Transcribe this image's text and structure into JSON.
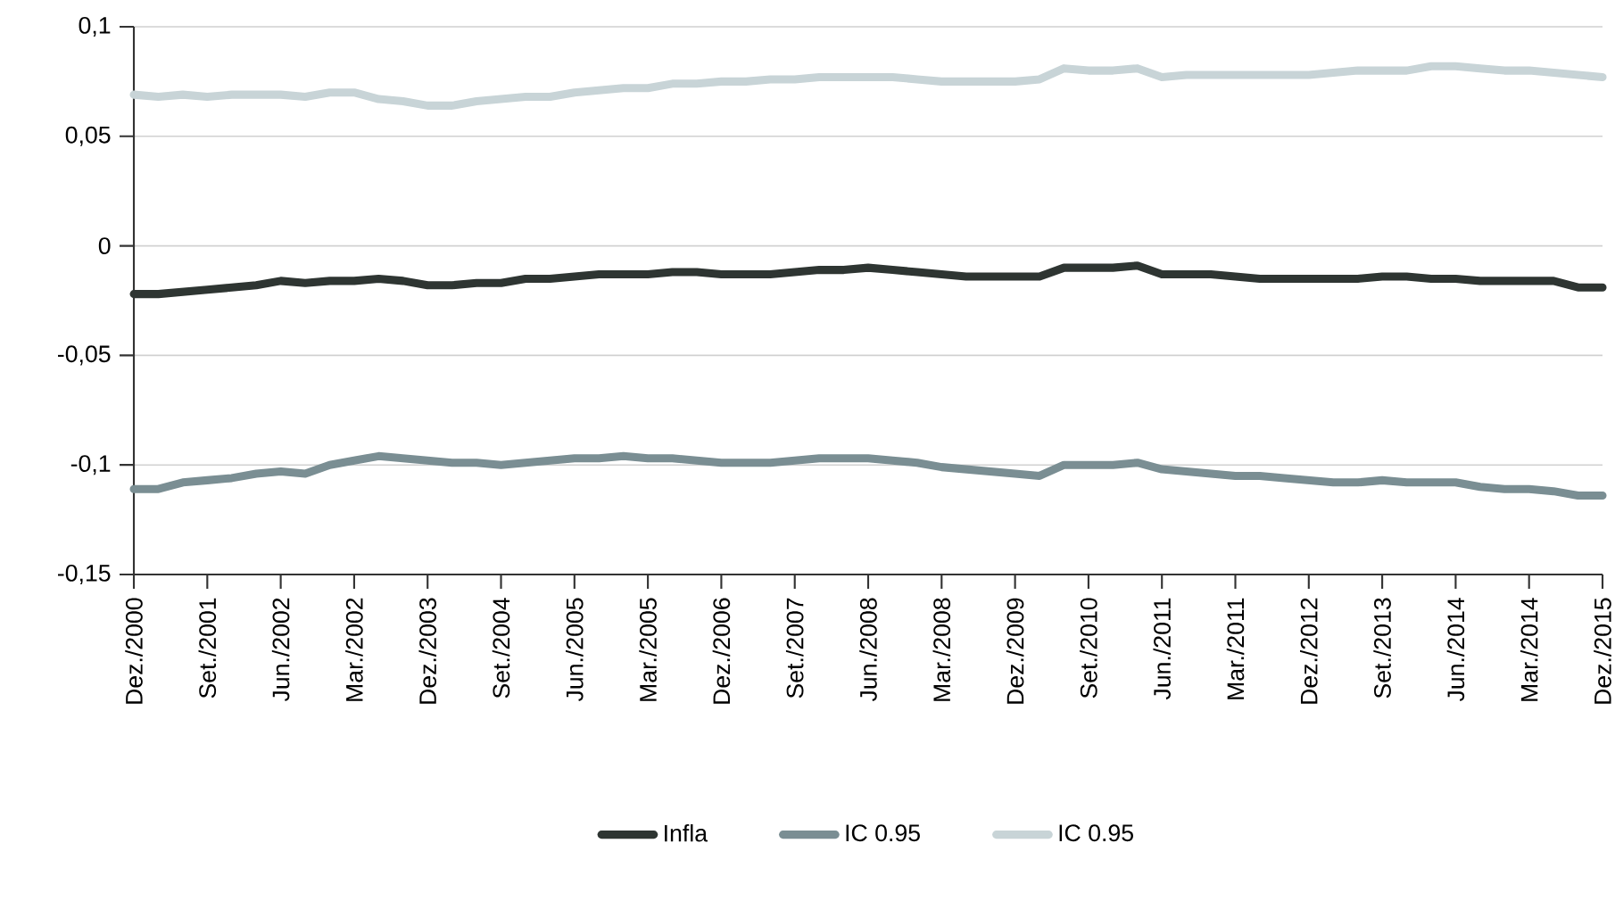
{
  "chart_data": {
    "type": "line",
    "categories": [
      "Dez./2000",
      null,
      null,
      "Set./2001",
      null,
      null,
      "Jun./2002",
      null,
      null,
      "Mar./2002",
      null,
      null,
      "Dez./2003",
      null,
      null,
      "Set./2004",
      null,
      null,
      "Jun./2005",
      null,
      null,
      "Mar./2005",
      null,
      null,
      "Dez./2006",
      null,
      null,
      "Set./2007",
      null,
      null,
      "Jun./2008",
      null,
      null,
      "Mar./2008",
      null,
      null,
      "Dez./2009",
      null,
      null,
      "Set./2010",
      null,
      null,
      "Jun./2011",
      null,
      null,
      "Mar./2011",
      null,
      null,
      "Dez./2012",
      null,
      null,
      "Set./2013",
      null,
      null,
      "Jun./2014",
      null,
      null,
      "Mar./2014",
      null,
      null,
      "Dez./2015"
    ],
    "series": [
      {
        "name": "Infla",
        "color": "#2e3532",
        "values": [
          -0.022,
          -0.022,
          -0.021,
          -0.02,
          -0.019,
          -0.018,
          -0.016,
          -0.017,
          -0.016,
          -0.016,
          -0.015,
          -0.016,
          -0.018,
          -0.018,
          -0.017,
          -0.017,
          -0.015,
          -0.015,
          -0.014,
          -0.013,
          -0.013,
          -0.013,
          -0.012,
          -0.012,
          -0.013,
          -0.013,
          -0.013,
          -0.012,
          -0.011,
          -0.011,
          -0.01,
          -0.011,
          -0.012,
          -0.013,
          -0.014,
          -0.014,
          -0.014,
          -0.014,
          -0.01,
          -0.01,
          -0.01,
          -0.009,
          -0.013,
          -0.013,
          -0.013,
          -0.014,
          -0.015,
          -0.015,
          -0.015,
          -0.015,
          -0.015,
          -0.014,
          -0.014,
          -0.015,
          -0.015,
          -0.016,
          -0.016,
          -0.016,
          -0.016,
          -0.019,
          -0.019
        ]
      },
      {
        "name": "IC 0.95",
        "color": "#7a8e93",
        "values": [
          -0.111,
          -0.111,
          -0.108,
          -0.107,
          -0.106,
          -0.104,
          -0.103,
          -0.104,
          -0.1,
          -0.098,
          -0.096,
          -0.097,
          -0.098,
          -0.099,
          -0.099,
          -0.1,
          -0.099,
          -0.098,
          -0.097,
          -0.097,
          -0.096,
          -0.097,
          -0.097,
          -0.098,
          -0.099,
          -0.099,
          -0.099,
          -0.098,
          -0.097,
          -0.097,
          -0.097,
          -0.098,
          -0.099,
          -0.101,
          -0.102,
          -0.103,
          -0.104,
          -0.105,
          -0.1,
          -0.1,
          -0.1,
          -0.099,
          -0.102,
          -0.103,
          -0.104,
          -0.105,
          -0.105,
          -0.106,
          -0.107,
          -0.108,
          -0.108,
          -0.107,
          -0.108,
          -0.108,
          -0.108,
          -0.11,
          -0.111,
          -0.111,
          -0.112,
          -0.114,
          -0.114
        ]
      },
      {
        "name": "IC 0.95",
        "color": "#c8d4d7",
        "values": [
          0.069,
          0.068,
          0.069,
          0.068,
          0.069,
          0.069,
          0.069,
          0.068,
          0.07,
          0.07,
          0.067,
          0.066,
          0.064,
          0.064,
          0.066,
          0.067,
          0.068,
          0.068,
          0.07,
          0.071,
          0.072,
          0.072,
          0.074,
          0.074,
          0.075,
          0.075,
          0.076,
          0.076,
          0.077,
          0.077,
          0.077,
          0.077,
          0.076,
          0.075,
          0.075,
          0.075,
          0.075,
          0.076,
          0.081,
          0.08,
          0.08,
          0.081,
          0.077,
          0.078,
          0.078,
          0.078,
          0.078,
          0.078,
          0.078,
          0.079,
          0.08,
          0.08,
          0.08,
          0.082,
          0.082,
          0.081,
          0.08,
          0.08,
          0.079,
          0.078,
          0.077
        ]
      }
    ],
    "ylim": [
      -0.15,
      0.1
    ],
    "yticks": [
      {
        "value": -0.15,
        "label": "-0,15"
      },
      {
        "value": -0.1,
        "label": "-0,1"
      },
      {
        "value": -0.05,
        "label": "-0,05"
      },
      {
        "value": 0,
        "label": "0"
      },
      {
        "value": 0.05,
        "label": "0,05"
      },
      {
        "value": 0.1,
        "label": "0,1"
      }
    ],
    "grid": "y",
    "legend": "bottom",
    "marker": "none",
    "line_style": "solid"
  }
}
